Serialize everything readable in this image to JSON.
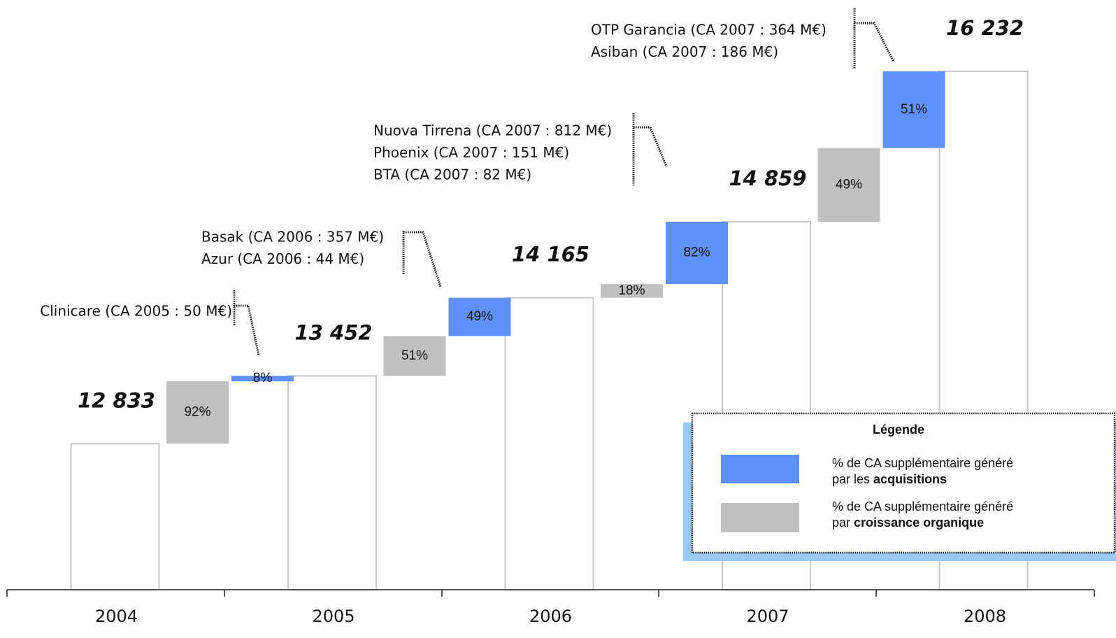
{
  "chart_data": {
    "type": "waterfall",
    "categories": [
      "2004",
      "2005",
      "2006",
      "2007",
      "2008"
    ],
    "values": [
      12833,
      13452,
      14165,
      14859,
      16232
    ],
    "value_labels": [
      "12 833",
      "13 452",
      "14 165",
      "14 859",
      "16 232"
    ],
    "ylim": [
      11500,
      16500
    ],
    "organic": {
      "color": "#c0c0c0",
      "values": [
        92,
        51,
        18,
        49
      ],
      "value_labels": [
        "92%",
        "51%",
        "18%",
        "49%"
      ]
    },
    "acquisitions": {
      "color": "#6090fb",
      "values": [
        8,
        49,
        82,
        51
      ],
      "value_labels": [
        "8%",
        "49%",
        "82%",
        "51%"
      ]
    },
    "annotations": [
      [
        "Clinicare (CA 2005 : 50 M€)"
      ],
      [
        "Basak (CA 2006 : 357 M€)",
        "Azur (CA 2006 : 44 M€)"
      ],
      [
        "Nuova Tirrena (CA 2007 : 812 M€)",
        "Phoenix (CA 2007 : 151 M€)",
        "BTA (CA 2007 : 82 M€)"
      ],
      [
        "OTP Garancia (CA 2007 : 364 M€)",
        "Asiban (CA 2007 : 186 M€)"
      ]
    ],
    "legend": {
      "title": "Légende",
      "acquisitions": {
        "line1": "% de CA supplémentaire généré",
        "line2": "par les",
        "bold": "acquisitions"
      },
      "organic": {
        "line1": "% de CA supplémentaire généré",
        "line2": "par",
        "bold": "croissance organique"
      }
    }
  }
}
